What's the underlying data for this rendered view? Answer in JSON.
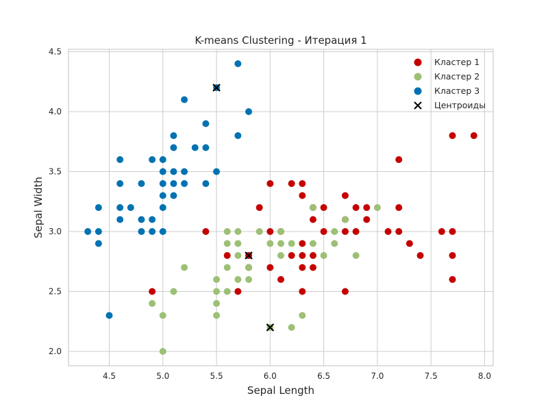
{
  "chart_data": {
    "type": "scatter",
    "title": "K-means Clustering - Итерация 1",
    "xlabel": "Sepal Length",
    "ylabel": "Sepal Width",
    "xlim": [
      4.12,
      8.08
    ],
    "ylim": [
      1.88,
      4.52
    ],
    "xticks": [
      4.5,
      5.0,
      5.5,
      6.0,
      6.5,
      7.0,
      7.5,
      8.0
    ],
    "yticks": [
      2.0,
      2.5,
      3.0,
      3.5,
      4.0,
      4.5
    ],
    "xtick_labels": [
      "4.5",
      "5.0",
      "5.5",
      "6.0",
      "6.5",
      "7.0",
      "7.5",
      "8.0"
    ],
    "ytick_labels": [
      "2.0",
      "2.5",
      "3.0",
      "3.5",
      "4.0",
      "4.5"
    ],
    "grid": true,
    "legend_position": "top-right",
    "series": [
      {
        "name": "Кластер 1",
        "color": "#c40000",
        "marker": "circle",
        "points": [
          [
            5.4,
            3.0
          ],
          [
            4.9,
            2.5
          ],
          [
            5.6,
            2.8
          ],
          [
            5.7,
            2.5
          ],
          [
            5.8,
            2.8
          ],
          [
            5.8,
            2.7
          ],
          [
            5.9,
            3.2
          ],
          [
            6.0,
            3.4
          ],
          [
            6.0,
            3.0
          ],
          [
            6.0,
            2.7
          ],
          [
            6.1,
            3.0
          ],
          [
            6.1,
            2.6
          ],
          [
            6.2,
            3.4
          ],
          [
            6.2,
            2.8
          ],
          [
            6.3,
            3.4
          ],
          [
            6.3,
            3.3
          ],
          [
            6.3,
            2.9
          ],
          [
            6.3,
            2.8
          ],
          [
            6.3,
            2.7
          ],
          [
            6.3,
            2.5
          ],
          [
            6.4,
            3.1
          ],
          [
            6.4,
            3.2
          ],
          [
            6.4,
            2.8
          ],
          [
            6.4,
            2.7
          ],
          [
            6.5,
            3.2
          ],
          [
            6.5,
            3.0
          ],
          [
            6.7,
            3.3
          ],
          [
            6.7,
            3.1
          ],
          [
            6.7,
            3.0
          ],
          [
            6.7,
            2.5
          ],
          [
            6.8,
            3.2
          ],
          [
            6.8,
            3.0
          ],
          [
            6.9,
            3.2
          ],
          [
            6.9,
            3.1
          ],
          [
            7.1,
            3.0
          ],
          [
            7.2,
            3.6
          ],
          [
            7.2,
            3.2
          ],
          [
            7.2,
            3.0
          ],
          [
            7.3,
            2.9
          ],
          [
            7.4,
            2.8
          ],
          [
            7.6,
            3.0
          ],
          [
            7.7,
            3.8
          ],
          [
            7.7,
            3.0
          ],
          [
            7.7,
            2.8
          ],
          [
            7.7,
            2.6
          ],
          [
            7.9,
            3.8
          ]
        ]
      },
      {
        "name": "Кластер 2",
        "color": "#9cc075",
        "marker": "circle",
        "points": [
          [
            4.9,
            2.4
          ],
          [
            5.0,
            2.3
          ],
          [
            5.0,
            2.0
          ],
          [
            5.1,
            2.5
          ],
          [
            5.2,
            2.7
          ],
          [
            5.5,
            2.6
          ],
          [
            5.5,
            2.5
          ],
          [
            5.5,
            2.4
          ],
          [
            5.5,
            2.3
          ],
          [
            5.6,
            3.0
          ],
          [
            5.6,
            2.9
          ],
          [
            5.6,
            2.7
          ],
          [
            5.6,
            2.5
          ],
          [
            5.7,
            3.0
          ],
          [
            5.7,
            2.9
          ],
          [
            5.7,
            2.8
          ],
          [
            5.7,
            2.6
          ],
          [
            5.8,
            2.7
          ],
          [
            5.8,
            2.6
          ],
          [
            5.9,
            3.0
          ],
          [
            6.0,
            2.9
          ],
          [
            6.0,
            2.2
          ],
          [
            6.1,
            3.0
          ],
          [
            6.1,
            2.9
          ],
          [
            6.1,
            2.8
          ],
          [
            6.2,
            2.9
          ],
          [
            6.2,
            2.2
          ],
          [
            6.3,
            2.3
          ],
          [
            6.4,
            3.2
          ],
          [
            6.4,
            2.9
          ],
          [
            6.5,
            2.8
          ],
          [
            6.6,
            3.0
          ],
          [
            6.6,
            2.9
          ],
          [
            6.7,
            3.1
          ],
          [
            6.8,
            2.8
          ],
          [
            7.0,
            3.2
          ]
        ]
      },
      {
        "name": "Кластер 3",
        "color": "#0072b2",
        "marker": "circle",
        "points": [
          [
            4.3,
            3.0
          ],
          [
            4.4,
            3.2
          ],
          [
            4.4,
            3.0
          ],
          [
            4.4,
            2.9
          ],
          [
            4.5,
            2.3
          ],
          [
            4.6,
            3.6
          ],
          [
            4.6,
            3.4
          ],
          [
            4.6,
            3.2
          ],
          [
            4.6,
            3.1
          ],
          [
            4.7,
            3.2
          ],
          [
            4.8,
            3.4
          ],
          [
            4.8,
            3.1
          ],
          [
            4.8,
            3.0
          ],
          [
            4.9,
            3.6
          ],
          [
            4.9,
            3.1
          ],
          [
            4.9,
            3.0
          ],
          [
            5.0,
            3.6
          ],
          [
            5.0,
            3.5
          ],
          [
            5.0,
            3.4
          ],
          [
            5.0,
            3.3
          ],
          [
            5.0,
            3.2
          ],
          [
            5.0,
            3.0
          ],
          [
            5.1,
            3.8
          ],
          [
            5.1,
            3.7
          ],
          [
            5.1,
            3.5
          ],
          [
            5.1,
            3.4
          ],
          [
            5.1,
            3.3
          ],
          [
            5.2,
            4.1
          ],
          [
            5.2,
            3.5
          ],
          [
            5.2,
            3.4
          ],
          [
            5.3,
            3.7
          ],
          [
            5.4,
            3.9
          ],
          [
            5.4,
            3.7
          ],
          [
            5.4,
            3.4
          ],
          [
            5.5,
            4.2
          ],
          [
            5.5,
            3.5
          ],
          [
            5.7,
            4.4
          ],
          [
            5.7,
            3.8
          ],
          [
            5.8,
            4.0
          ]
        ]
      }
    ],
    "centroids": {
      "name": "Центроиды",
      "color": "#000000",
      "marker": "x",
      "points": [
        [
          5.5,
          4.2
        ],
        [
          5.8,
          2.8
        ],
        [
          6.0,
          2.2
        ]
      ]
    }
  }
}
